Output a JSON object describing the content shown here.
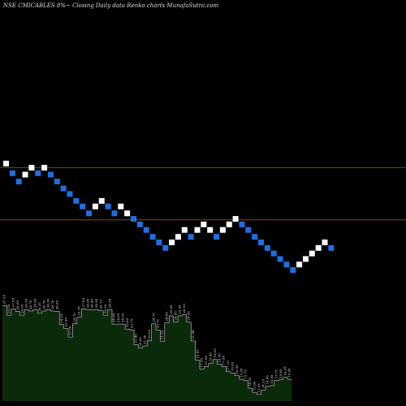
{
  "chart_data": {
    "type": "renko",
    "title": "NSE CMICABLES 8%~ Closing Daily data Renko charts MunafaSutra.com",
    "colors": {
      "background": "#000000",
      "up_brick": "#ffffff",
      "down_brick": "#1e6fe0",
      "level_line": "#8b4513",
      "volume_fill": "#0b2a0b",
      "volume_stroke": "#ffffff",
      "label_color": "#e8e8e8"
    },
    "brick_step_pct": 8,
    "levels": [
      24.1,
      20.33
    ],
    "bricks": [
      {
        "dir": "up",
        "level": 24.4
      },
      {
        "dir": "down",
        "level": 23.7
      },
      {
        "dir": "down",
        "level": 23.1
      },
      {
        "dir": "up",
        "level": 23.6
      },
      {
        "dir": "up",
        "level": 24.1
      },
      {
        "dir": "down",
        "level": 23.7
      },
      {
        "dir": "up",
        "level": 24.1
      },
      {
        "dir": "down",
        "level": 23.6
      },
      {
        "dir": "down",
        "level": 23.1
      },
      {
        "dir": "down",
        "level": 22.6
      },
      {
        "dir": "down",
        "level": 22.2
      },
      {
        "dir": "down",
        "level": 21.7
      },
      {
        "dir": "down",
        "level": 21.3
      },
      {
        "dir": "down",
        "level": 20.8
      },
      {
        "dir": "up",
        "level": 21.3
      },
      {
        "dir": "up",
        "level": 21.7
      },
      {
        "dir": "down",
        "level": 21.3
      },
      {
        "dir": "down",
        "level": 20.8
      },
      {
        "dir": "up",
        "level": 21.3
      },
      {
        "dir": "up",
        "level": 20.8
      },
      {
        "dir": "down",
        "level": 20.4
      },
      {
        "dir": "down",
        "level": 20.0
      },
      {
        "dir": "down",
        "level": 19.6
      },
      {
        "dir": "down",
        "level": 19.1
      },
      {
        "dir": "down",
        "level": 18.7
      },
      {
        "dir": "down",
        "level": 18.3
      },
      {
        "dir": "up",
        "level": 18.7
      },
      {
        "dir": "up",
        "level": 19.1
      },
      {
        "dir": "up",
        "level": 19.6
      },
      {
        "dir": "down",
        "level": 19.1
      },
      {
        "dir": "up",
        "level": 19.6
      },
      {
        "dir": "up",
        "level": 20.0
      },
      {
        "dir": "up",
        "level": 19.6
      },
      {
        "dir": "down",
        "level": 19.1
      },
      {
        "dir": "up",
        "level": 19.6
      },
      {
        "dir": "up",
        "level": 20.0
      },
      {
        "dir": "up",
        "level": 20.4
      },
      {
        "dir": "down",
        "level": 20.0
      },
      {
        "dir": "down",
        "level": 19.6
      },
      {
        "dir": "down",
        "level": 19.1
      },
      {
        "dir": "down",
        "level": 18.7
      },
      {
        "dir": "down",
        "level": 18.3
      },
      {
        "dir": "down",
        "level": 17.9
      },
      {
        "dir": "down",
        "level": 17.5
      },
      {
        "dir": "down",
        "level": 17.1
      },
      {
        "dir": "down",
        "level": 16.7
      },
      {
        "dir": "up",
        "level": 17.1
      },
      {
        "dir": "up",
        "level": 17.5
      },
      {
        "dir": "up",
        "level": 17.9
      },
      {
        "dir": "up",
        "level": 18.3
      },
      {
        "dir": "up",
        "level": 18.7
      },
      {
        "dir": "down",
        "level": 18.3
      }
    ],
    "price_labels": [
      {
        "text": "27.55",
        "value": 27.55
      },
      {
        "text": "26.05",
        "value": 26.05
      },
      {
        "text": "27.05",
        "value": 27.05
      },
      {
        "text": "26.65",
        "value": 26.65
      },
      {
        "text": "26.05",
        "value": 26.05
      },
      {
        "text": "26.95",
        "value": 26.95
      },
      {
        "text": "26.70",
        "value": 26.7
      },
      {
        "text": "26.95",
        "value": 26.95
      },
      {
        "text": "26.35",
        "value": 26.35
      },
      {
        "text": "26.70",
        "value": 26.7
      },
      {
        "text": "26.95",
        "value": 26.95
      },
      {
        "text": "26.70",
        "value": 26.7
      },
      {
        "text": "26.65",
        "value": 26.65
      },
      {
        "text": "24.55",
        "value": 24.55
      },
      {
        "text": "23.95",
        "value": 23.95
      },
      {
        "text": "22.60",
        "value": 22.6
      },
      {
        "text": "24.70",
        "value": 24.7
      },
      {
        "text": "25.70",
        "value": 25.7
      },
      {
        "text": "27.05",
        "value": 27.05
      },
      {
        "text": "26.95",
        "value": 26.95
      },
      {
        "text": "26.90",
        "value": 26.9
      },
      {
        "text": "26.95",
        "value": 26.95
      },
      {
        "text": "26.75",
        "value": 26.75
      },
      {
        "text": "26.05",
        "value": 26.05
      },
      {
        "text": "26.95",
        "value": 26.95
      },
      {
        "text": "24.65",
        "value": 24.65
      },
      {
        "text": "24.65",
        "value": 24.65
      },
      {
        "text": "24.65",
        "value": 24.65
      },
      {
        "text": "23.85",
        "value": 23.85
      },
      {
        "text": "23.75",
        "value": 23.75
      },
      {
        "text": "21.40",
        "value": 21.4
      },
      {
        "text": "20.85",
        "value": 20.85
      },
      {
        "text": "21.20",
        "value": 21.2
      },
      {
        "text": "22.05",
        "value": 22.05
      },
      {
        "text": "24.70",
        "value": 24.7
      },
      {
        "text": "23.70",
        "value": 23.7
      },
      {
        "text": "21.95",
        "value": 21.95
      },
      {
        "text": "24.85",
        "value": 24.85
      },
      {
        "text": "25.95",
        "value": 25.95
      },
      {
        "text": "24.95",
        "value": 24.95
      },
      {
        "text": "25.95",
        "value": 25.95
      },
      {
        "text": "26.10",
        "value": 26.1
      },
      {
        "text": "24.95",
        "value": 24.95
      },
      {
        "text": "21.98",
        "value": 21.98
      },
      {
        "text": "18.95",
        "value": 18.95
      },
      {
        "text": "17.55",
        "value": 17.55
      },
      {
        "text": "17.95",
        "value": 17.95
      },
      {
        "text": "18.45",
        "value": 18.45
      },
      {
        "text": "19.05",
        "value": 19.05
      },
      {
        "text": "18.30",
        "value": 18.3
      },
      {
        "text": "17.95",
        "value": 17.95
      },
      {
        "text": "17.15",
        "value": 17.15
      },
      {
        "text": "16.95",
        "value": 16.95
      },
      {
        "text": "16.50",
        "value": 16.5
      },
      {
        "text": "15.95",
        "value": 15.95
      },
      {
        "text": "15.75",
        "value": 15.75
      },
      {
        "text": "14.55",
        "value": 14.55
      },
      {
        "text": "13.90",
        "value": 13.9
      },
      {
        "text": "13.55",
        "value": 13.55
      },
      {
        "text": "14.25",
        "value": 14.25
      },
      {
        "text": "14.85",
        "value": 14.85
      },
      {
        "text": "14.95",
        "value": 14.95
      },
      {
        "text": "15.75",
        "value": 15.75
      },
      {
        "text": "15.85",
        "value": 15.85
      },
      {
        "text": "16.25",
        "value": 16.25
      },
      {
        "text": "15.95",
        "value": 15.95
      }
    ]
  }
}
